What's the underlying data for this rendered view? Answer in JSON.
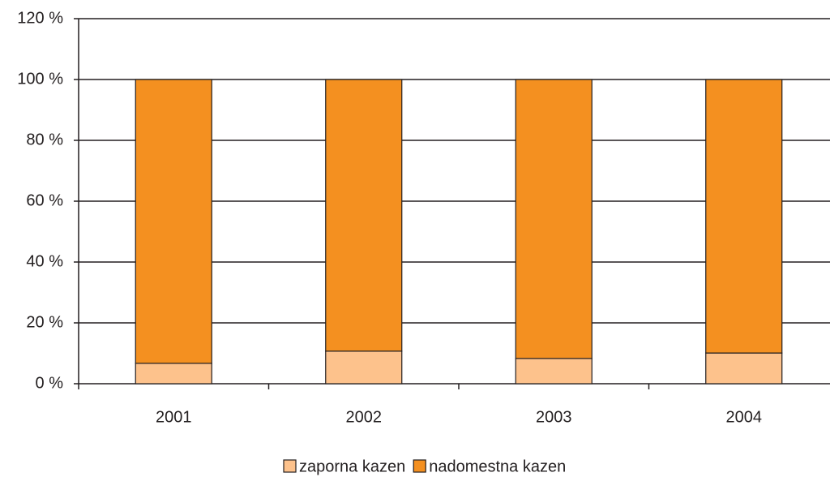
{
  "chart_data": {
    "type": "stacked_bar",
    "categories": [
      "2001",
      "2002",
      "2003",
      "2004"
    ],
    "series": [
      {
        "name": "zaporna kazen",
        "color": "#fdc28c",
        "values": [
          6.7,
          10.7,
          8.3,
          10.1
        ]
      },
      {
        "name": "nadomestna kazen",
        "color": "#f49020",
        "values": [
          93.3,
          89.3,
          91.7,
          89.9
        ]
      }
    ],
    "ylim": [
      0,
      120
    ],
    "yticks": [
      {
        "value": 0,
        "label": "0 %"
      },
      {
        "value": 20,
        "label": "20 %"
      },
      {
        "value": 40,
        "label": "40 %"
      },
      {
        "value": 60,
        "label": "60 %"
      },
      {
        "value": 80,
        "label": "80 %"
      },
      {
        "value": 100,
        "label": "100 %"
      },
      {
        "value": 120,
        "label": "120 %"
      }
    ],
    "grid": true,
    "legend": "bottom"
  }
}
